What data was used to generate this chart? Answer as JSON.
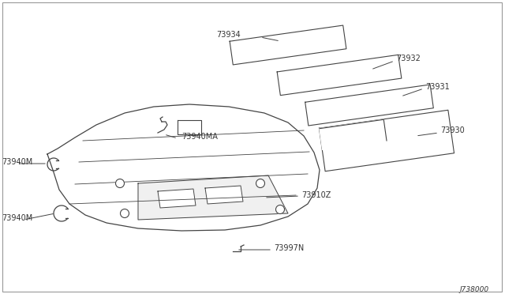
{
  "background_color": "#ffffff",
  "border_color": "#999999",
  "line_color": "#444444",
  "text_color": "#333333",
  "diagram_id": "J738000",
  "font_size": 7.0,
  "parts": [
    "73910Z",
    "73930",
    "73931",
    "73932",
    "73934",
    "73940M",
    "73940MA",
    "73997N"
  ]
}
